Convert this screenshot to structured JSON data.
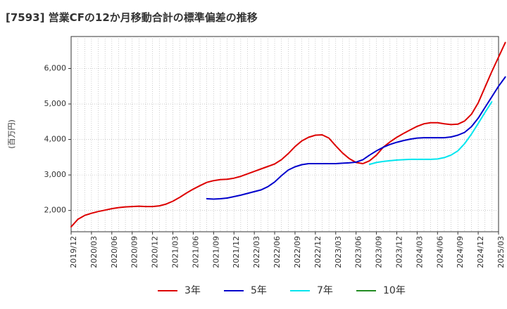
{
  "chart_data": {
    "type": "line",
    "title": "[7593]  営業CFの12か月移動合計の標準偏差の推移",
    "ylabel": "(百万円)",
    "ylim": [
      1400,
      6900
    ],
    "yticks": [
      2000,
      3000,
      4000,
      5000,
      6000
    ],
    "ytick_labels": [
      "2,000",
      "3,000",
      "4,000",
      "5,000",
      "6,000"
    ],
    "x_start": "2019/12",
    "x_end": "2025/03",
    "xtick_labels": [
      "2019/12",
      "2020/03",
      "2020/06",
      "2020/09",
      "2020/12",
      "2021/03",
      "2021/06",
      "2021/09",
      "2021/12",
      "2022/03",
      "2022/06",
      "2022/09",
      "2022/12",
      "2023/03",
      "2023/06",
      "2023/09",
      "2023/12",
      "2024/03",
      "2024/06",
      "2024/09",
      "2024/12",
      "2025/03"
    ],
    "grid": true,
    "legend_position": "bottom",
    "series": [
      {
        "name": "3年",
        "color": "#dd0000",
        "start": "2019/12",
        "values": [
          1540,
          1750,
          1860,
          1920,
          1970,
          2010,
          2050,
          2080,
          2100,
          2110,
          2120,
          2110,
          2110,
          2130,
          2180,
          2260,
          2370,
          2490,
          2600,
          2700,
          2790,
          2840,
          2870,
          2880,
          2910,
          2960,
          3030,
          3100,
          3170,
          3240,
          3310,
          3430,
          3600,
          3800,
          3960,
          4060,
          4120,
          4130,
          4040,
          3820,
          3620,
          3460,
          3350,
          3320,
          3400,
          3560,
          3780,
          3930,
          4060,
          4170,
          4270,
          4370,
          4440,
          4470,
          4470,
          4440,
          4420,
          4430,
          4520,
          4710,
          5030,
          5470,
          5910,
          6320,
          6730
        ]
      },
      {
        "name": "5年",
        "color": "#0000cc",
        "start": "2021/08",
        "values": [
          2330,
          2320,
          2330,
          2350,
          2390,
          2430,
          2480,
          2530,
          2580,
          2670,
          2800,
          2980,
          3140,
          3230,
          3290,
          3320,
          3320,
          3320,
          3320,
          3320,
          3330,
          3340,
          3360,
          3430,
          3560,
          3680,
          3780,
          3860,
          3920,
          3970,
          4010,
          4040,
          4050,
          4050,
          4050,
          4050,
          4070,
          4120,
          4200,
          4360,
          4600,
          4900,
          5200,
          5500,
          5760
        ]
      },
      {
        "name": "7年",
        "color": "#00e5ee",
        "start": "2023/08",
        "values": [
          3300,
          3350,
          3380,
          3400,
          3420,
          3430,
          3440,
          3440,
          3440,
          3440,
          3450,
          3490,
          3560,
          3680,
          3880,
          4150,
          4450,
          4760,
          5060
        ]
      },
      {
        "name": "10年",
        "color": "#228b22",
        "start": "2023/08",
        "values": []
      }
    ]
  }
}
